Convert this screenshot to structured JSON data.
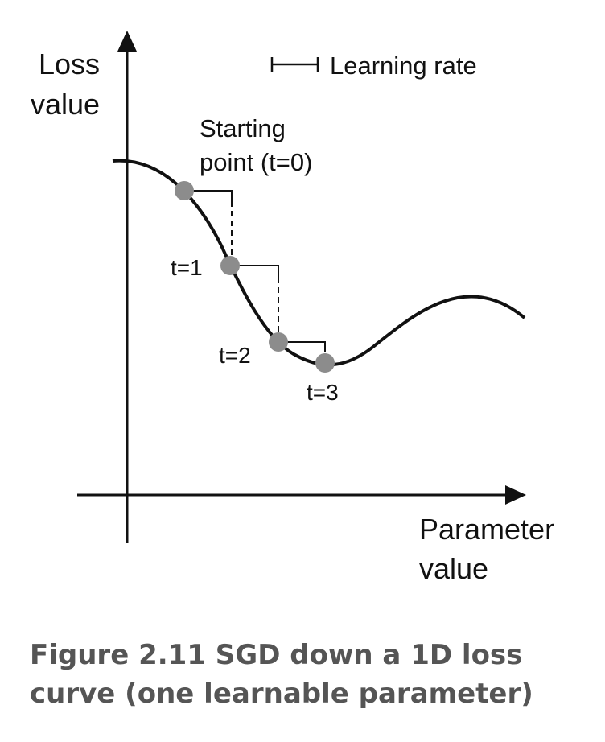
{
  "axes": {
    "y_label": [
      "Loss",
      "value"
    ],
    "x_label": [
      "Parameter",
      "value"
    ]
  },
  "legend": {
    "label": "Learning rate"
  },
  "points": [
    {
      "label": [
        "Starting",
        "point (t=0)"
      ]
    },
    {
      "label": [
        "t=1"
      ]
    },
    {
      "label": [
        "t=2"
      ]
    },
    {
      "label": [
        "t=3"
      ]
    }
  ],
  "caption": {
    "line1": "Figure 2.11   SGD down a 1D loss",
    "line2": "curve (one learnable parameter)"
  },
  "colors": {
    "curve": "#111111",
    "point": "#8c8c8c",
    "caption": "#555555"
  }
}
